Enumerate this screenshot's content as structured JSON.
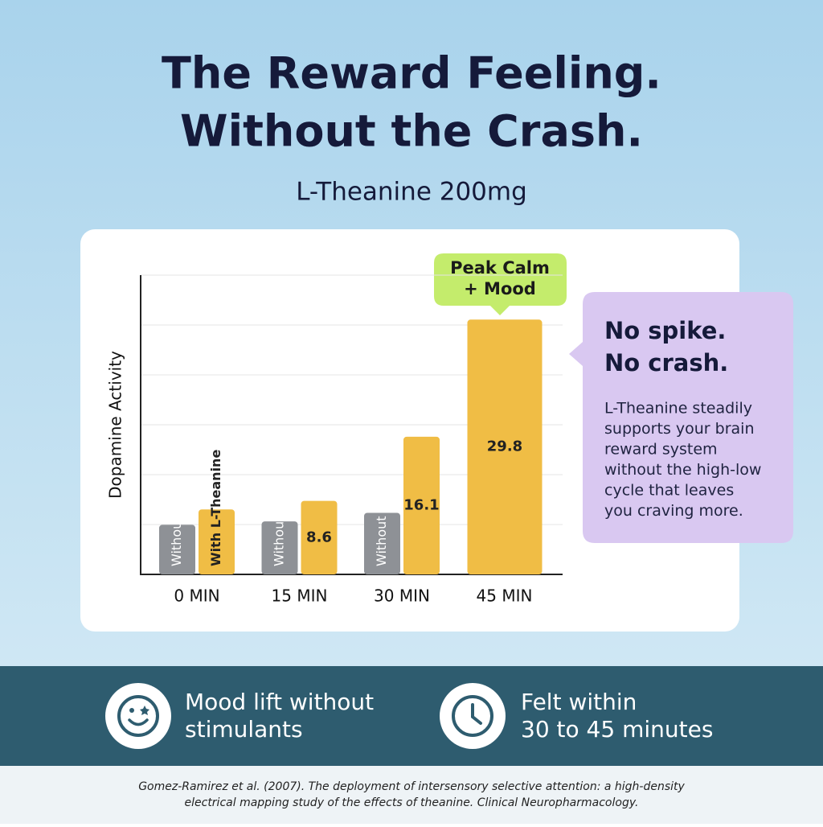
{
  "title_lines": [
    "The Reward Feeling.",
    "Without the Crash."
  ],
  "subtitle": "L-Theanine 200mg",
  "chart_data": {
    "type": "bar",
    "y_label": "Dopamine Activity",
    "categories": [
      "0 MIN",
      "15 MIN",
      "30 MIN",
      "45 MIN"
    ],
    "series": [
      {
        "name": "Without",
        "color": "#8e9196",
        "values": [
          5.8,
          6.2,
          7.2,
          null
        ]
      },
      {
        "name": "With L-Theanine",
        "color": "#f0bd45",
        "values": [
          7.6,
          8.6,
          16.1,
          29.8
        ]
      }
    ],
    "ylim": [
      0,
      35
    ],
    "grid": true,
    "annotation_lines": [
      "Peak Calm",
      "+ Mood"
    ]
  },
  "side_note": {
    "heading_lines": [
      "No spike.",
      "No crash."
    ],
    "body_lines": [
      "L-Theanine steadily",
      "supports your brain",
      "reward system",
      "without the high-low",
      "cycle that leaves",
      "you craving more."
    ]
  },
  "features": [
    {
      "lines": [
        "Mood lift without",
        "stimulants"
      ]
    },
    {
      "lines": [
        "Felt within",
        "30 to 45 minutes"
      ]
    }
  ],
  "citation_lines": [
    "Gomez-Ramirez et al. (2007). The deployment of intersensory selective attention: a high-density",
    "electrical mapping study of the effects of theanine. Clinical Neuropharmacology."
  ]
}
